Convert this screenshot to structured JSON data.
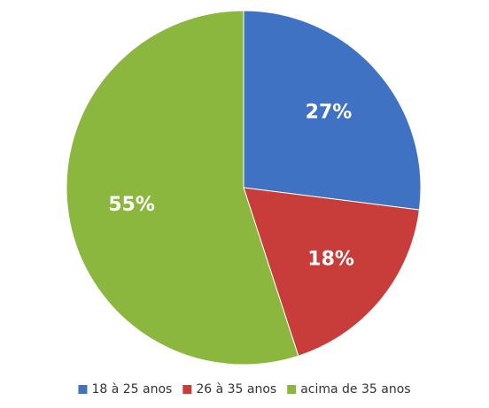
{
  "chart_data": {
    "type": "pie",
    "categories": [
      "18 à 25 anos",
      "26 à 35 anos",
      "acima de 35 anos"
    ],
    "values": [
      27,
      18,
      55
    ],
    "value_labels": [
      "27%",
      "18%",
      "55%"
    ],
    "colors": [
      "#3f72c2",
      "#c83c3a",
      "#8cb73e"
    ],
    "legend": "bottom"
  }
}
